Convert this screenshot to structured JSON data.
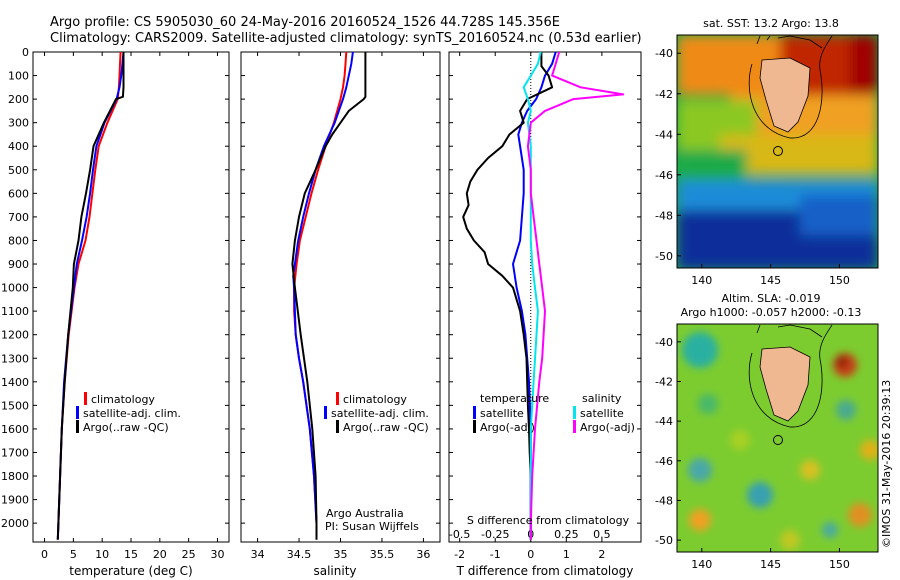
{
  "header": {
    "line1": "Argo profile: CS 5905030_60 24-May-2016 20160524_1526 44.728S 145.356E",
    "line2": "Climatology: CARS2009. Satellite-adjusted climatology: synTS_20160524.nc (0.53d earlier)"
  },
  "side_text": "©IMOS 31-May-2016 20:39:13",
  "colors": {
    "climatology": "#ff0000",
    "satellite": "#0000ff",
    "argo": "#000000",
    "salinity_satellite": "#00e5ee",
    "salinity_argo": "#ff00ff"
  },
  "chart_data": [
    {
      "type": "line",
      "xlabel": "temperature (deg C)",
      "ylabel": "",
      "xlim": [
        -2,
        32
      ],
      "ylim": [
        2080,
        0
      ],
      "xticks": [
        "0",
        "5",
        "10",
        "15",
        "20",
        "25",
        "30"
      ],
      "yticks": [
        "0",
        "100",
        "200",
        "300",
        "400",
        "500",
        "600",
        "700",
        "800",
        "900",
        "1000",
        "1100",
        "1200",
        "1300",
        "1400",
        "1500",
        "1600",
        "1700",
        "1800",
        "1900",
        "2000"
      ],
      "legend": [
        "climatology",
        "satellite-adj. clim.",
        "Argo(..raw -QC)"
      ],
      "legend_position": "center",
      "series": [
        {
          "name": "climatology",
          "depth": [
            0,
            50,
            100,
            150,
            200,
            300,
            400,
            500,
            600,
            700,
            800,
            900,
            1000,
            1200,
            1400,
            1600,
            1800,
            2000,
            2070
          ],
          "values": [
            13.2,
            13.1,
            13.0,
            12.9,
            12.7,
            10.9,
            9.4,
            8.8,
            8.3,
            7.8,
            7.1,
            5.9,
            5.2,
            4.2,
            3.5,
            3.0,
            2.7,
            2.4,
            2.3
          ]
        },
        {
          "name": "satellite-adj. clim.",
          "depth": [
            0,
            50,
            100,
            150,
            200,
            300,
            400,
            500,
            600,
            700,
            800,
            900,
            1000,
            1200,
            1400,
            1600,
            1800,
            2000,
            2070
          ],
          "values": [
            13.7,
            13.5,
            13.3,
            13.0,
            12.5,
            10.4,
            9.0,
            8.4,
            7.9,
            7.3,
            6.5,
            5.6,
            5.1,
            4.1,
            3.4,
            3.0,
            2.7,
            2.4,
            2.3
          ]
        },
        {
          "name": "Argo(..raw -QC)",
          "depth": [
            0,
            50,
            100,
            150,
            190,
            200,
            300,
            400,
            500,
            600,
            700,
            800,
            900,
            1000,
            1200,
            1400,
            1600,
            1800,
            2000,
            2070
          ],
          "values": [
            13.7,
            13.7,
            13.7,
            13.7,
            13.6,
            12.4,
            10.3,
            8.5,
            7.9,
            7.2,
            6.4,
            5.9,
            5.1,
            4.9,
            4.1,
            3.5,
            3.0,
            2.7,
            2.4,
            2.3
          ]
        }
      ]
    },
    {
      "type": "line",
      "xlabel": "salinity",
      "ylabel": "",
      "xlim": [
        33.8,
        36.2
      ],
      "ylim": [
        2080,
        0
      ],
      "xticks": [
        "34",
        "34.5",
        "35",
        "35.5",
        "36"
      ],
      "legend": [
        "climatology",
        "satellite-adj. clim.",
        "Argo(..raw -QC)"
      ],
      "legend_position": "center",
      "annotations": [
        "Argo Australia",
        "PI: Susan Wijffels"
      ],
      "series": [
        {
          "name": "climatology",
          "depth": [
            0,
            50,
            100,
            150,
            200,
            300,
            400,
            500,
            600,
            700,
            800,
            900,
            1000,
            1100,
            1200,
            1300,
            1400,
            1600,
            1800,
            2000,
            2070
          ],
          "values": [
            35.07,
            35.06,
            35.05,
            35.03,
            35.0,
            34.92,
            34.82,
            34.73,
            34.65,
            34.58,
            34.51,
            34.47,
            34.44,
            34.44,
            34.46,
            34.5,
            34.55,
            34.63,
            34.68,
            34.71,
            34.71
          ]
        },
        {
          "name": "satellite-adj. clim.",
          "depth": [
            0,
            50,
            100,
            150,
            200,
            300,
            400,
            500,
            600,
            700,
            800,
            900,
            950,
            1000,
            1200,
            1300,
            1400,
            1600,
            1800,
            2000,
            2070
          ],
          "values": [
            35.15,
            35.13,
            35.1,
            35.07,
            35.03,
            34.93,
            34.8,
            34.7,
            34.62,
            34.55,
            34.49,
            34.45,
            34.43,
            34.44,
            34.46,
            34.5,
            34.55,
            34.63,
            34.68,
            34.71,
            34.71
          ]
        },
        {
          "name": "Argo(..raw -QC)",
          "depth": [
            0,
            40,
            100,
            190,
            200,
            250,
            300,
            350,
            400,
            500,
            600,
            700,
            800,
            900,
            1000,
            1200,
            1400,
            1600,
            1800,
            2000,
            2070
          ],
          "values": [
            35.3,
            35.3,
            35.3,
            35.3,
            35.28,
            35.1,
            35.0,
            34.9,
            34.82,
            34.7,
            34.57,
            34.5,
            34.45,
            34.42,
            34.45,
            34.52,
            34.6,
            34.66,
            34.7,
            34.71,
            34.71
          ]
        }
      ]
    },
    {
      "type": "line",
      "xlabel": "T difference from climatology",
      "x2label": "S difference from climatology",
      "ylabel": "",
      "xlim": [
        -2.3,
        3.1
      ],
      "x2lim": [
        -0.575,
        0.775
      ],
      "ylim": [
        2080,
        0
      ],
      "xticks": [
        "-2",
        "-1",
        "0",
        "1",
        "2"
      ],
      "x2ticks": [
        "-0.5",
        "-0.25",
        "0",
        "0.25",
        "0.5"
      ],
      "legend_titles": [
        "temperature",
        "salinity"
      ],
      "legend": [
        "satellite",
        "Argo(-adj)",
        "satellite",
        "Argo(-adj)"
      ],
      "legend_position": "center",
      "series": [
        {
          "name": "temperature satellite",
          "depth": [
            0,
            50,
            100,
            150,
            200,
            250,
            300,
            350,
            400,
            500,
            600,
            700,
            800,
            900,
            1000,
            1100,
            1200,
            1300,
            1400,
            1600,
            1800,
            2000,
            2070
          ],
          "values": [
            0.7,
            0.6,
            0.4,
            0.3,
            0.15,
            -0.1,
            -0.25,
            -0.35,
            -0.3,
            -0.2,
            -0.2,
            -0.25,
            -0.3,
            -0.5,
            -0.4,
            -0.25,
            -0.15,
            -0.1,
            -0.05,
            0.0,
            0.0,
            0.0,
            0.0
          ]
        },
        {
          "name": "temperature Argo(-adj)",
          "depth": [
            0,
            60,
            100,
            150,
            200,
            250,
            300,
            350,
            400,
            450,
            500,
            550,
            600,
            650,
            700,
            750,
            800,
            850,
            900,
            950,
            1000,
            1100,
            1200,
            1300,
            1400,
            1500,
            1600,
            1700,
            1800,
            2000,
            2070
          ],
          "values": [
            0.3,
            0.3,
            0.5,
            0.6,
            -0.1,
            -0.3,
            -0.2,
            -0.6,
            -0.8,
            -1.2,
            -1.5,
            -1.7,
            -1.8,
            -1.75,
            -1.9,
            -1.8,
            -1.6,
            -1.3,
            -1.2,
            -0.8,
            -0.5,
            -0.3,
            -0.2,
            -0.12,
            -0.1,
            -0.08,
            -0.05,
            -0.03,
            0.0,
            0.0,
            0.0
          ]
        },
        {
          "name": "salinity satellite",
          "depth": [
            0,
            50,
            100,
            150,
            200,
            250,
            300,
            400,
            500,
            600,
            700,
            800,
            900,
            1000,
            1100,
            1200,
            1400,
            1600,
            1800,
            2000,
            2070
          ],
          "values": [
            0.07,
            0.05,
            0.0,
            -0.05,
            -0.02,
            0.0,
            -0.02,
            0.0,
            0.0,
            0.0,
            0.0,
            0.0,
            0.01,
            0.03,
            0.05,
            0.04,
            0.02,
            0.0,
            0.0,
            0.0,
            0.0
          ]
        },
        {
          "name": "salinity Argo(-adj)",
          "depth": [
            0,
            60,
            100,
            150,
            170,
            180,
            200,
            250,
            300,
            400,
            500,
            600,
            700,
            800,
            900,
            1000,
            1100,
            1200,
            1300,
            1400,
            1600,
            1800,
            2000,
            2070
          ],
          "values": [
            0.2,
            0.17,
            0.15,
            0.35,
            0.55,
            0.65,
            0.3,
            0.1,
            0.0,
            -0.02,
            0.0,
            0.0,
            0.02,
            0.04,
            0.06,
            0.08,
            0.1,
            0.09,
            0.08,
            0.06,
            0.03,
            0.01,
            0.0,
            0.0
          ]
        }
      ]
    },
    {
      "type": "heatmap",
      "title": "sat. SST: 13.2  Argo: 13.8",
      "xticks": [
        "140",
        "145",
        "150"
      ],
      "yticks": [
        "-40",
        "-42",
        "-44",
        "-46",
        "-48",
        "-50"
      ],
      "xlim": [
        138.2,
        152.8
      ],
      "ylim": [
        -50.6,
        -39.1
      ],
      "marker": {
        "lon": 145.356,
        "lat": -44.728
      }
    },
    {
      "type": "heatmap",
      "title": "Altim. SLA: -0.019",
      "subtitle": "Argo h1000: -0.057 h2000: -0.13",
      "xticks": [
        "140",
        "145",
        "150"
      ],
      "yticks": [
        "-40",
        "-42",
        "-44",
        "-46",
        "-48",
        "-50"
      ],
      "xlim": [
        138.2,
        152.8
      ],
      "ylim": [
        -50.6,
        -39.1
      ],
      "marker": {
        "lon": 145.356,
        "lat": -44.728
      }
    }
  ]
}
